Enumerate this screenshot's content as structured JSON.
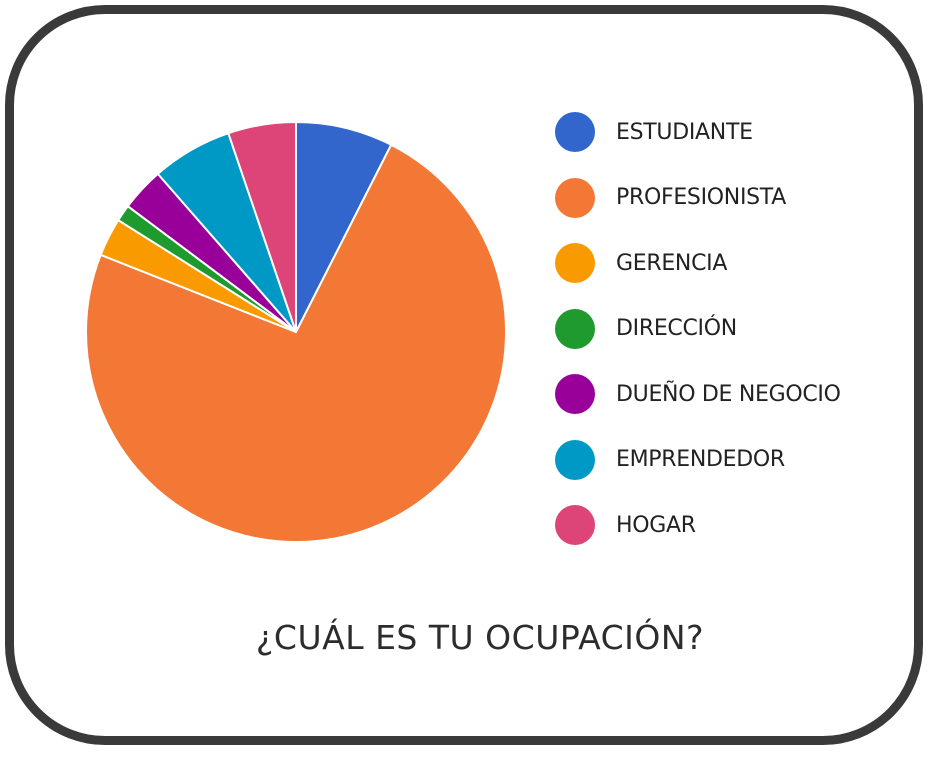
{
  "chart_data": {
    "type": "pie",
    "title": "¿CUÁL ES TU OCUPACIÓN?",
    "categories": [
      "ESTUDIANTE",
      "PROFESIONISTA",
      "GERENCIA",
      "DIRECCIÓN",
      "DUEÑO DE NEGOCIO",
      "EMPRENDEDOR",
      "HOGAR"
    ],
    "values": [
      7.6,
      74.6,
      3.0,
      1.3,
      3.4,
      6.3,
      5.3
    ],
    "unit": "%",
    "colors": [
      "#3366cc",
      "#f37735",
      "#f99a00",
      "#1e9a2e",
      "#99009a",
      "#0099c6",
      "#dd4477"
    ],
    "start_angle_deg": 90,
    "direction": "clockwise",
    "legend_position": "right"
  }
}
